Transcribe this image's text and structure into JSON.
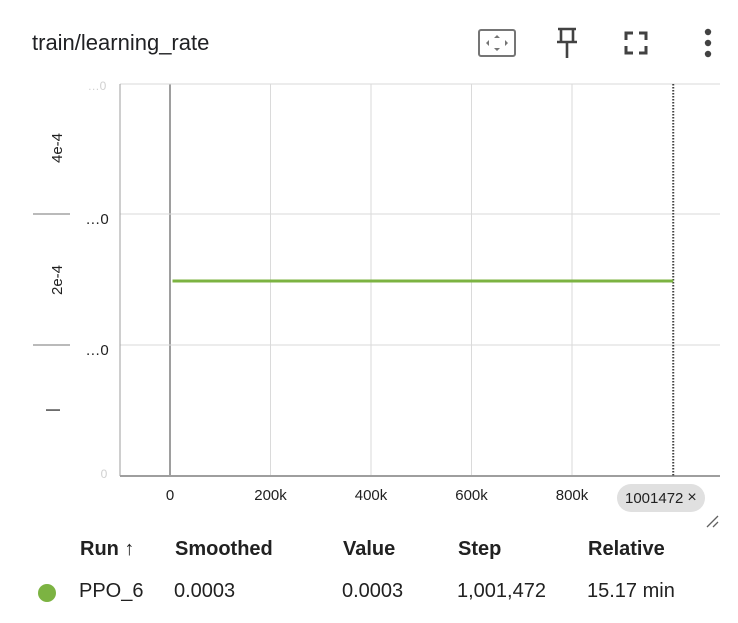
{
  "panel": {
    "title": "train/learning_rate",
    "toolbar": {
      "fit_icon": "fit-to-data-icon",
      "pin_icon": "pin-icon",
      "fullscreen_icon": "fullscreen-icon",
      "more_icon": "more-vert-icon"
    },
    "step_chip": {
      "label": "1001472",
      "close": "×"
    }
  },
  "chart_data": {
    "type": "line",
    "x_ticks": [
      "0",
      "200k",
      "400k",
      "600k",
      "800k"
    ],
    "y_ticks": [
      {
        "label": "4e-4",
        "rotated": true
      },
      {
        "label": "…0",
        "rotated": false
      },
      {
        "label": "2e-4",
        "rotated": true
      },
      {
        "label": "…0",
        "rotated": false
      },
      {
        "label": "|",
        "rotated": true
      }
    ],
    "xlim": [
      -5000,
      1100000
    ],
    "ylim": [
      0,
      0.0006
    ],
    "grid": true,
    "series": [
      {
        "name": "PPO_6",
        "color": "#7cb342",
        "x": [
          5000,
          1001472
        ],
        "y": [
          0.0003,
          0.0003
        ]
      }
    ],
    "cursor_step": 1001472
  },
  "table": {
    "headers": [
      "Run ↑",
      "Smoothed",
      "Value",
      "Step",
      "Relative"
    ],
    "rows": [
      {
        "color": "#7cb342",
        "run": "PPO_6",
        "smoothed": "0.0003",
        "value": "0.0003",
        "step": "1,001,472",
        "relative": "15.17 min"
      }
    ]
  }
}
